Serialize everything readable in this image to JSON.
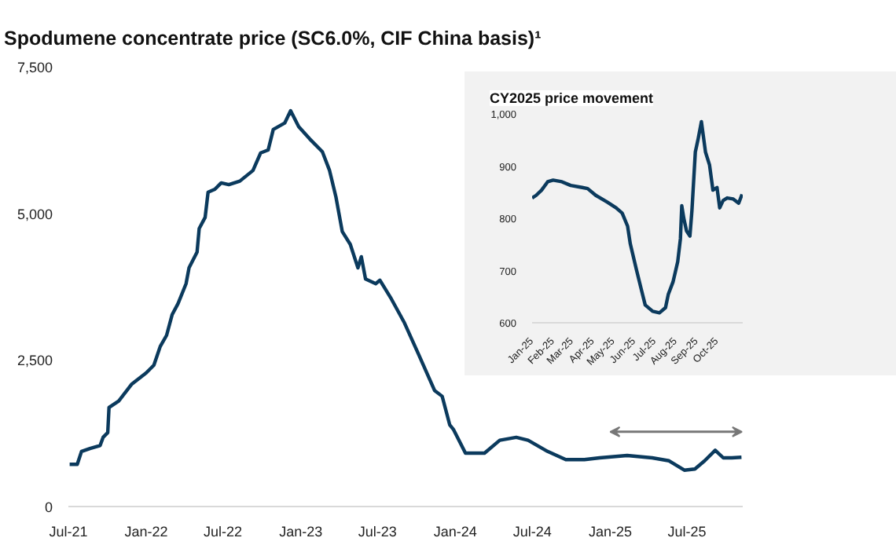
{
  "chart_data": [
    {
      "type": "line",
      "title": "Spodumene concentrate price (SC6.0%, CIF China basis)¹",
      "x": [
        "2021-07-04",
        "2021-07-22",
        "2021-08-01",
        "2021-08-21",
        "2021-09-14",
        "2021-09-21",
        "2021-10-02",
        "2021-10-05",
        "2021-10-28",
        "2021-11-28",
        "2022-01-01",
        "2022-01-19",
        "2022-02-03",
        "2022-02-18",
        "2022-03-03",
        "2022-03-17",
        "2022-04-05",
        "2022-04-12",
        "2022-05-01",
        "2022-05-06",
        "2022-05-20",
        "2022-05-27",
        "2022-06-12",
        "2022-06-27",
        "2022-07-15",
        "2022-08-10",
        "2022-09-10",
        "2022-09-28",
        "2022-10-16",
        "2022-10-28",
        "2022-11-24",
        "2022-12-08",
        "2022-12-27",
        "2023-01-22",
        "2023-02-21",
        "2023-03-10",
        "2023-03-25",
        "2023-04-09",
        "2023-04-28",
        "2023-05-16",
        "2023-05-24",
        "2023-06-03",
        "2023-06-27",
        "2023-07-07",
        "2023-08-03",
        "2023-09-03",
        "2023-10-06",
        "2023-11-13",
        "2023-12-01",
        "2023-12-19",
        "2023-12-28",
        "2024-01-25",
        "2024-03-10",
        "2024-04-15",
        "2024-05-24",
        "2024-06-21",
        "2024-08-06",
        "2024-09-18",
        "2024-11-01",
        "2024-12-07",
        "2025-02-10",
        "2025-04-10",
        "2025-05-20",
        "2025-06-25",
        "2025-07-20",
        "2025-08-12",
        "2025-09-06",
        "2025-09-25",
        "2025-10-15",
        "2025-11-07"
      ],
      "series": [
        {
          "color": "#0b3a5d",
          "values": [
            720,
            720,
            940,
            990,
            1040,
            1180,
            1260,
            1690,
            1800,
            2090,
            2280,
            2410,
            2730,
            2920,
            3270,
            3460,
            3800,
            4070,
            4340,
            4740,
            4930,
            5360,
            5410,
            5520,
            5490,
            5550,
            5730,
            6030,
            6080,
            6430,
            6540,
            6750,
            6480,
            6270,
            6050,
            5730,
            5280,
            4690,
            4470,
            4070,
            4260,
            3880,
            3800,
            3860,
            3540,
            3130,
            2600,
            1980,
            1880,
            1390,
            1310,
            910,
            910,
            1130,
            1180,
            1130,
            940,
            800,
            800,
            830,
            870,
            830,
            780,
            620,
            640,
            780,
            960,
            830,
            830,
            840
          ]
        }
      ],
      "xlim": [
        "2021-07-01",
        "2025-11-10"
      ],
      "xticks": [
        {
          "value": "2021-07-01",
          "label": "Jul-21"
        },
        {
          "value": "2022-01-01",
          "label": "Jan-22"
        },
        {
          "value": "2022-07-01",
          "label": "Jul-22"
        },
        {
          "value": "2023-01-01",
          "label": "Jan-23"
        },
        {
          "value": "2023-07-01",
          "label": "Jul-23"
        },
        {
          "value": "2024-01-01",
          "label": "Jan-24"
        },
        {
          "value": "2024-07-01",
          "label": "Jul-24"
        },
        {
          "value": "2025-01-01",
          "label": "Jan-25"
        },
        {
          "value": "2025-07-01",
          "label": "Jul-25"
        }
      ],
      "ylim": [
        0,
        7500
      ],
      "yticks": [
        {
          "value": 0,
          "label": "0"
        },
        {
          "value": 2500,
          "label": "2,500"
        },
        {
          "value": 5000,
          "label": "5,000"
        },
        {
          "value": 7500,
          "label": "7,500"
        }
      ]
    },
    {
      "type": "line",
      "title": "CY2025 price movement",
      "x": [
        "2025-01-01",
        "2025-01-07",
        "2025-01-15",
        "2025-01-24",
        "2025-02-01",
        "2025-02-14",
        "2025-02-27",
        "2025-03-16",
        "2025-03-24",
        "2025-04-05",
        "2025-04-22",
        "2025-05-05",
        "2025-05-14",
        "2025-05-22",
        "2025-05-26",
        "2025-06-04",
        "2025-06-11",
        "2025-06-17",
        "2025-06-28",
        "2025-07-08",
        "2025-07-17",
        "2025-07-21",
        "2025-07-28",
        "2025-08-04",
        "2025-08-08",
        "2025-08-10",
        "2025-08-13",
        "2025-08-17",
        "2025-08-22",
        "2025-08-25",
        "2025-08-30",
        "2025-09-03",
        "2025-09-08",
        "2025-09-14",
        "2025-09-20",
        "2025-09-25",
        "2025-10-01",
        "2025-10-05",
        "2025-10-10",
        "2025-10-16",
        "2025-10-25",
        "2025-11-02",
        "2025-11-07"
      ],
      "series": [
        {
          "color": "#0b3a5d",
          "values": [
            839,
            844,
            854,
            870,
            873,
            870,
            863,
            859,
            857,
            844,
            831,
            820,
            810,
            785,
            751,
            702,
            665,
            634,
            622,
            619,
            629,
            654,
            678,
            717,
            761,
            824,
            800,
            776,
            766,
            815,
            927,
            951,
            985,
            927,
            902,
            854,
            859,
            820,
            834,
            839,
            837,
            829,
            846
          ]
        }
      ],
      "xlim": [
        "2025-01-01",
        "2025-11-08"
      ],
      "xticks": [
        {
          "value": "2025-01-01",
          "label": "Jan-25"
        },
        {
          "value": "2025-02-01",
          "label": "Feb-25"
        },
        {
          "value": "2025-03-01",
          "label": "Mar-25"
        },
        {
          "value": "2025-04-01",
          "label": "Apr-25"
        },
        {
          "value": "2025-05-01",
          "label": "May-25"
        },
        {
          "value": "2025-06-01",
          "label": "Jun-25"
        },
        {
          "value": "2025-07-01",
          "label": "Jul-25"
        },
        {
          "value": "2025-08-01",
          "label": "Aug-25"
        },
        {
          "value": "2025-09-01",
          "label": "Sep-25"
        },
        {
          "value": "2025-10-01",
          "label": "Oct-25"
        }
      ],
      "ylim": [
        600,
        1000
      ],
      "yticks": [
        {
          "value": 600,
          "label": "600"
        },
        {
          "value": 700,
          "label": "700"
        },
        {
          "value": 800,
          "label": "800"
        },
        {
          "value": 900,
          "label": "900"
        },
        {
          "value": 1000,
          "label": "1,000"
        }
      ]
    }
  ]
}
